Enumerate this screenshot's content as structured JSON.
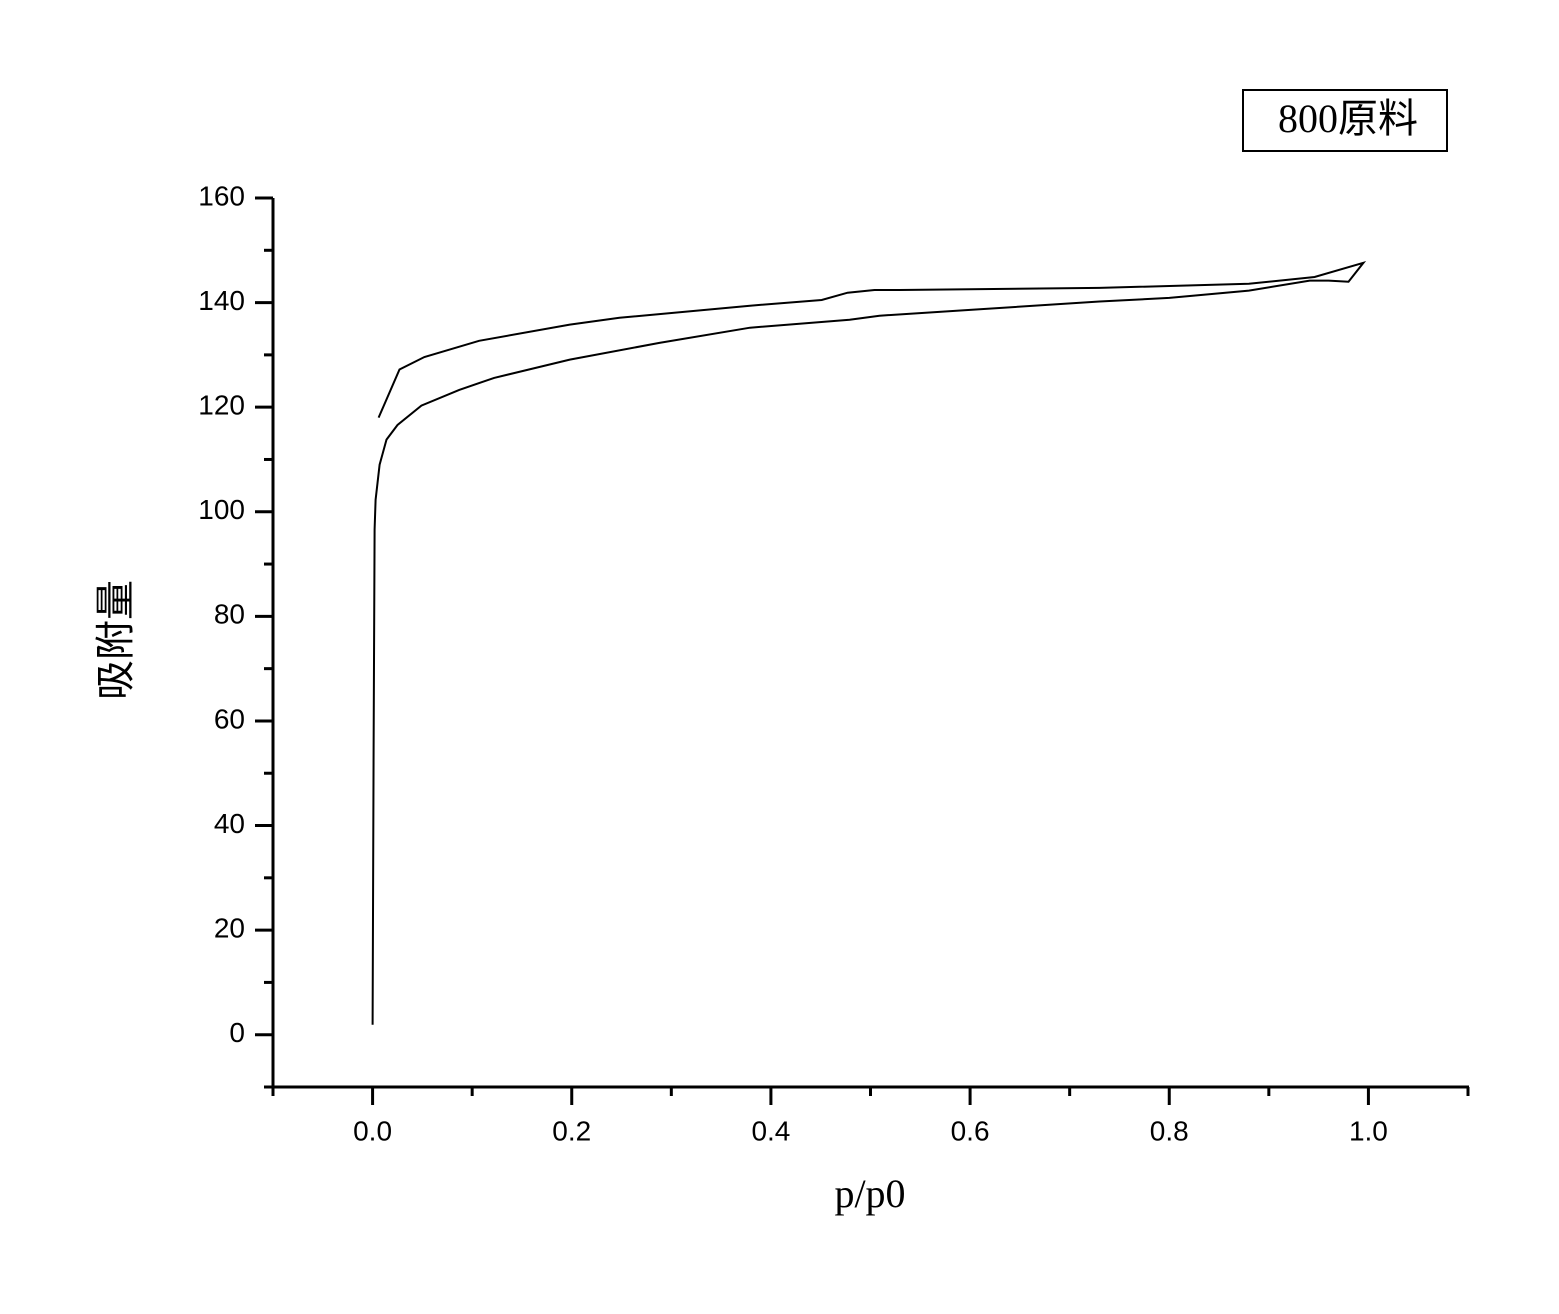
{
  "chart_data": {
    "type": "line",
    "xlabel": "p/p0",
    "ylabel": "吸附量",
    "x": [
      0.0,
      0.001,
      0.002,
      0.003,
      0.007,
      0.014,
      0.025,
      0.049,
      0.087,
      0.122,
      0.198,
      0.288,
      0.379,
      0.479,
      0.509,
      0.6,
      0.73,
      0.8,
      0.88,
      0.941,
      0.96,
      0.98,
      0.995,
      0.946,
      0.88,
      0.73,
      0.529,
      0.504,
      0.477,
      0.451,
      0.379,
      0.248,
      0.198,
      0.107,
      0.052,
      0.027,
      0.006
    ],
    "series": [
      {
        "name": "800原料",
        "color": "#000000",
        "values": [
          1.9,
          54.5,
          96.6,
          102.3,
          109,
          113.8,
          116.6,
          120.3,
          123.3,
          125.6,
          129.1,
          132.3,
          135.2,
          136.7,
          137.5,
          138.6,
          140.2,
          140.9,
          142.3,
          144.2,
          144.2,
          144,
          147.6,
          144.9,
          143.6,
          142.8,
          142.4,
          142.4,
          141.9,
          140.5,
          139.4,
          137.1,
          135.8,
          132.7,
          129.6,
          127.2,
          118
        ]
      }
    ],
    "xlim": [
      -0.1,
      1.1
    ],
    "xticks": [
      {
        "value": 0,
        "label": "0.0"
      },
      0.2,
      0.4,
      0.6,
      0.8,
      {
        "value": 1,
        "label": "1.0"
      }
    ],
    "ylim": [
      -10,
      160
    ],
    "yticks": [
      0,
      20,
      40,
      60,
      80,
      100,
      120,
      140,
      160
    ],
    "grid": false,
    "legend": "upper right"
  }
}
